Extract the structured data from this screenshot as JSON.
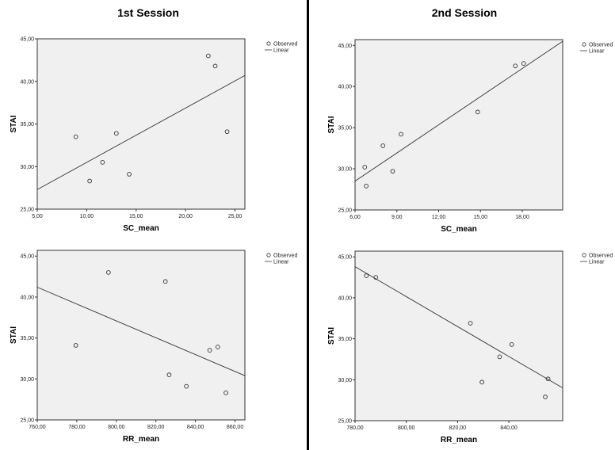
{
  "sessions": [
    {
      "title": "1st Session"
    },
    {
      "title": "2nd Session"
    }
  ],
  "chart_data": [
    {
      "id": "s1-sc",
      "type": "scatter",
      "session": "1st Session",
      "xlabel": "SC_mean",
      "ylabel": "STAI",
      "xlim": [
        5,
        26
      ],
      "ylim": [
        25,
        45
      ],
      "xticks": [
        5,
        10,
        15,
        20,
        25
      ],
      "xtick_labels": [
        "5,00",
        "10,00",
        "15,00",
        "20,00",
        "25,00"
      ],
      "yticks": [
        25,
        30,
        35,
        40,
        45
      ],
      "ytick_labels": [
        "25,00",
        "30,00",
        "35,00",
        "40,00",
        "45,00"
      ],
      "legend": [
        "Observed",
        "Linear"
      ],
      "points": [
        [
          8.9,
          33.5
        ],
        [
          10.3,
          28.3
        ],
        [
          11.6,
          30.5
        ],
        [
          13.0,
          33.9
        ],
        [
          14.3,
          29.1
        ],
        [
          22.3,
          43.0
        ],
        [
          23.0,
          41.8
        ],
        [
          24.2,
          34.1
        ]
      ],
      "fit_line": [
        [
          5,
          27.3
        ],
        [
          26,
          40.7
        ]
      ]
    },
    {
      "id": "s2-sc",
      "type": "scatter",
      "session": "2nd Session",
      "xlabel": "SC_mean",
      "ylabel": "STAI",
      "xlim": [
        6,
        20.9
      ],
      "ylim": [
        25,
        45.7
      ],
      "xticks": [
        6,
        9,
        12,
        15,
        18
      ],
      "xtick_labels": [
        "6,00",
        "9,00",
        "12,00",
        "15,00",
        "18,00"
      ],
      "yticks": [
        25,
        30,
        35,
        40,
        45
      ],
      "ytick_labels": [
        "25,00",
        "30,00",
        "35,00",
        "40,00",
        "45,00"
      ],
      "legend": [
        "Observed",
        "Linear"
      ],
      "points": [
        [
          6.7,
          30.2
        ],
        [
          6.8,
          27.9
        ],
        [
          8.0,
          32.8
        ],
        [
          8.7,
          29.7
        ],
        [
          9.3,
          34.2
        ],
        [
          14.8,
          36.9
        ],
        [
          17.5,
          42.5
        ],
        [
          18.1,
          42.8
        ]
      ],
      "fit_line": [
        [
          6,
          28.5
        ],
        [
          20.9,
          45.5
        ]
      ]
    },
    {
      "id": "s1-rr",
      "type": "scatter",
      "session": "1st Session",
      "xlabel": "RR_mean",
      "ylabel": "STAI",
      "xlim": [
        760,
        865
      ],
      "ylim": [
        25,
        45.7
      ],
      "xticks": [
        760,
        780,
        800,
        820,
        840,
        860
      ],
      "xtick_labels": [
        "760,00",
        "780,00",
        "800,00",
        "820,00",
        "840,00",
        "860,00"
      ],
      "yticks": [
        25,
        30,
        35,
        40,
        45
      ],
      "ytick_labels": [
        "25,00",
        "30,00",
        "35,00",
        "40,00",
        "45,00"
      ],
      "legend": [
        "Observed",
        "Linear"
      ],
      "points": [
        [
          779.5,
          34.1
        ],
        [
          796.0,
          43.0
        ],
        [
          824.8,
          41.9
        ],
        [
          826.7,
          30.5
        ],
        [
          835.4,
          29.1
        ],
        [
          847.2,
          33.5
        ],
        [
          851.3,
          33.9
        ],
        [
          855.4,
          28.3
        ]
      ],
      "fit_line": [
        [
          760,
          41.2
        ],
        [
          865,
          30.4
        ]
      ]
    },
    {
      "id": "s2-rr",
      "type": "scatter",
      "session": "2nd Session",
      "xlabel": "RR_mean",
      "ylabel": "STAI",
      "xlim": [
        780,
        861
      ],
      "ylim": [
        25,
        45.7
      ],
      "xticks": [
        780,
        800,
        820,
        840
      ],
      "xtick_labels": [
        "780,00",
        "800,00",
        "820,00",
        "840,00"
      ],
      "yticks": [
        25,
        30,
        35,
        40,
        45
      ],
      "ytick_labels": [
        "25,00",
        "30,00",
        "35,00",
        "40,00",
        "45,00"
      ],
      "legend": [
        "Observed",
        "Linear"
      ],
      "points": [
        [
          784.4,
          42.7
        ],
        [
          788.1,
          42.5
        ],
        [
          825.0,
          36.9
        ],
        [
          829.5,
          29.7
        ],
        [
          836.4,
          32.8
        ],
        [
          841.1,
          34.3
        ],
        [
          854.2,
          27.9
        ],
        [
          855.3,
          30.1
        ]
      ],
      "fit_line": [
        [
          780,
          43.8
        ],
        [
          861,
          29.0
        ]
      ]
    }
  ]
}
